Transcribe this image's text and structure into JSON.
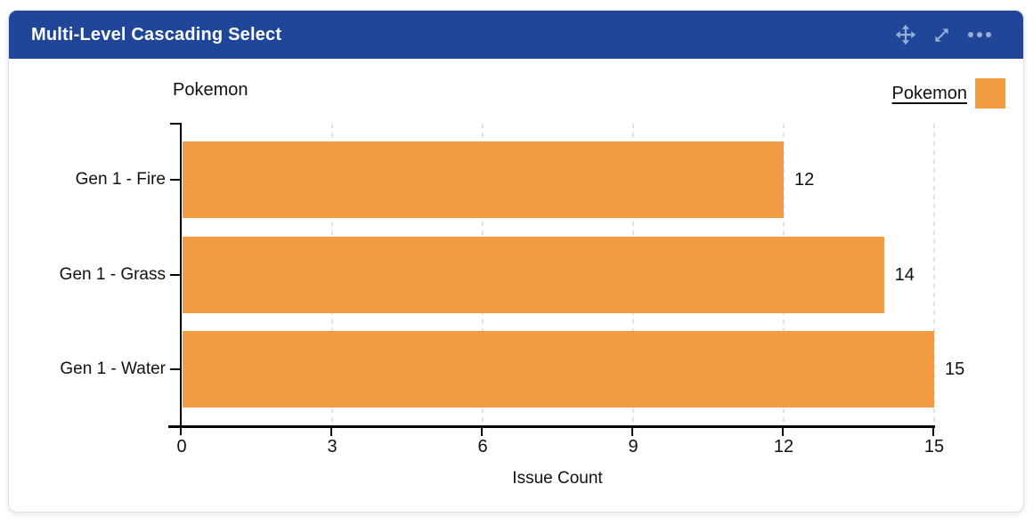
{
  "header": {
    "title": "Multi-Level Cascading Select",
    "icons": [
      {
        "name": "move-icon"
      },
      {
        "name": "expand-icon"
      },
      {
        "name": "more-options-icon"
      }
    ]
  },
  "colors": {
    "header_bg": "#1f4699",
    "header_icon": "#9aaed6",
    "bar": "#f19c42",
    "grid": "#e2e2e2",
    "axis": "#000000"
  },
  "chart_data": {
    "type": "bar",
    "orientation": "horizontal",
    "categories": [
      "Gen 1 - Fire",
      "Gen 1 - Grass",
      "Gen 1 - Water"
    ],
    "values": [
      12,
      14,
      15
    ],
    "series_name": "Pokemon",
    "y_axis_title": "Pokemon",
    "xlabel": "Issue Count",
    "x_ticks": [
      0,
      3,
      6,
      9,
      12,
      15
    ],
    "xlim": [
      0,
      15
    ],
    "grid": "vertical-dashed",
    "legend": {
      "label": "Pokemon",
      "position": "top-right"
    },
    "bar_color": "#f19c42",
    "value_label_position": "end-of-bar"
  }
}
